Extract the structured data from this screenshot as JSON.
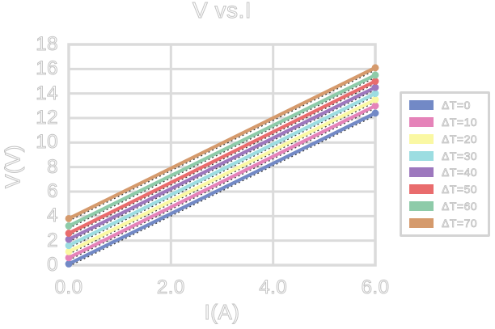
{
  "title": "V vs.I",
  "y_axis": {
    "label": "V(V)",
    "ticks": [
      "0",
      "2",
      "4",
      "6",
      "8",
      "10",
      "12",
      "14",
      "16",
      "18"
    ],
    "tick_values": [
      0,
      2,
      4,
      6,
      8,
      10,
      12,
      14,
      16,
      18
    ]
  },
  "x_axis": {
    "label": "I(A)",
    "ticks": [
      "0.0",
      "2.0",
      "4.0",
      "6.0"
    ],
    "tick_values": [
      0,
      2,
      4,
      6
    ]
  },
  "style": {
    "grid_color": "#dbdbdb",
    "legend_border_color": "#d4d4d4",
    "text_outline_color": "#c3c3c3",
    "trendline_color": "#1a1a1a",
    "background": "#ffffff"
  },
  "chart_data": {
    "type": "line",
    "title": "V vs.I",
    "xlabel": "I(A)",
    "ylabel": "V(V)",
    "xlim": [
      0,
      6
    ],
    "ylim": [
      0,
      18
    ],
    "x": [
      0,
      6
    ],
    "x_ticks": [
      0,
      2,
      4,
      6
    ],
    "y_ticks": [
      0,
      2,
      4,
      6,
      8,
      10,
      12,
      14,
      16,
      18
    ],
    "grid": true,
    "legend_position": "right",
    "markers": "round dots at endpoints",
    "trendline": "black dashed linear trendline along each series",
    "series": [
      {
        "name": "ΔT=0",
        "color": "#7289C6",
        "values": [
          0.1,
          12.4
        ]
      },
      {
        "name": "ΔT=10",
        "color": "#E583B9",
        "values": [
          0.6,
          13.0
        ]
      },
      {
        "name": "ΔT=20",
        "color": "#FAF8A3",
        "values": [
          1.1,
          13.5
        ]
      },
      {
        "name": "ΔT=30",
        "color": "#9CDDE1",
        "values": [
          1.6,
          14.0
        ]
      },
      {
        "name": "ΔT=40",
        "color": "#9D78BE",
        "values": [
          2.1,
          14.5
        ]
      },
      {
        "name": "ΔT=50",
        "color": "#E96C6D",
        "values": [
          2.6,
          15.0
        ]
      },
      {
        "name": "ΔT=60",
        "color": "#8ECBA9",
        "values": [
          3.2,
          15.5
        ]
      },
      {
        "name": "ΔT=70",
        "color": "#D59A6C",
        "values": [
          3.8,
          16.1
        ]
      }
    ]
  }
}
